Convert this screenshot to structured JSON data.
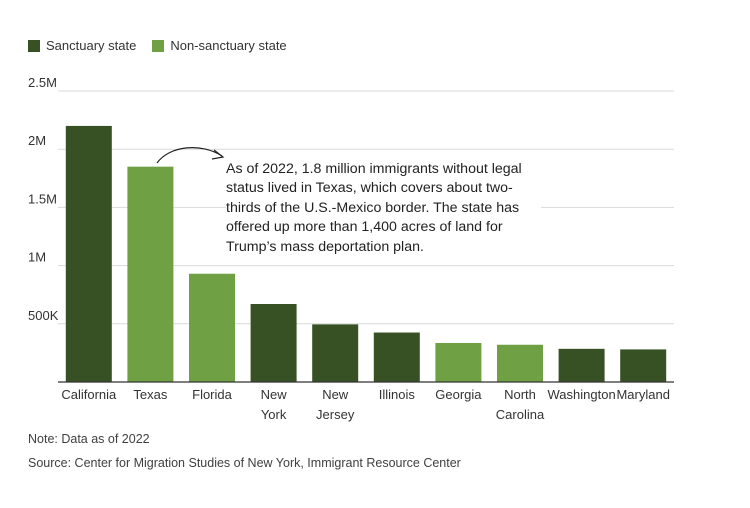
{
  "legend": {
    "sanctuary_label": "Sanctuary state",
    "non_sanctuary_label": "Non-sanctuary state"
  },
  "colors": {
    "sanctuary": "#375124",
    "non_sanctuary": "#6fa043",
    "grid": "#d9d9d9",
    "axis": "#333333"
  },
  "annotation": {
    "text": "As of 2022, 1.8 million immigrants without legal status lived in Texas, which covers about two-thirds of the U.S.-Mexico border. The state has offered up more than 1,400 acres of land for Trump’s mass deportation plan."
  },
  "footer": {
    "note": "Note: Data as of 2022",
    "source": "Source: Center for Migration Studies of New York, Immigrant Resource Center"
  },
  "chart_data": {
    "type": "bar",
    "categories": [
      "California",
      "Texas",
      "Florida",
      "New York",
      "New Jersey",
      "Illinois",
      "Georgia",
      "North Carolina",
      "Washington",
      "Maryland"
    ],
    "category_lines": [
      [
        "California"
      ],
      [
        "Texas"
      ],
      [
        "Florida"
      ],
      [
        "New",
        "York"
      ],
      [
        "New",
        "Jersey"
      ],
      [
        "Illinois"
      ],
      [
        "Georgia"
      ],
      [
        "North",
        "Carolina"
      ],
      [
        "Washington"
      ],
      [
        "Maryland"
      ]
    ],
    "values": [
      2200000,
      1850000,
      930000,
      670000,
      495000,
      425000,
      335000,
      320000,
      285000,
      280000
    ],
    "status": [
      "sanctuary",
      "non_sanctuary",
      "non_sanctuary",
      "sanctuary",
      "sanctuary",
      "sanctuary",
      "non_sanctuary",
      "non_sanctuary",
      "sanctuary",
      "sanctuary"
    ],
    "yticks": [
      500000,
      1000000,
      1500000,
      2000000,
      2500000
    ],
    "ytick_labels": [
      "500K",
      "1M",
      "1.5M",
      "2M",
      "2.5M"
    ],
    "ylim": [
      0,
      2500000
    ],
    "grid": true,
    "legend_position": "top-left"
  }
}
